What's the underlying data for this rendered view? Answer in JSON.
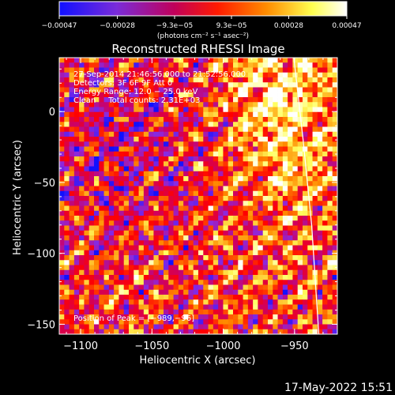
{
  "chart_data": {
    "type": "heatmap",
    "title": "Reconstructed RHESSI Image",
    "xlabel": "Heliocentric X (arcsec)",
    "ylabel": "Heliocentric Y (arcsec)",
    "xlim": [
      -1115,
      -920
    ],
    "ylim": [
      -157,
      38
    ],
    "x_ticks": [
      -1100,
      -1050,
      -1000,
      -950
    ],
    "x_tick_labels": [
      "−1100",
      "−1050",
      "−1000",
      "−950"
    ],
    "y_ticks": [
      0,
      -50,
      -100,
      -150
    ],
    "y_tick_labels": [
      "0",
      "−50",
      "−100",
      "−150"
    ],
    "colorbar": {
      "range": [
        -0.00047,
        0.00047
      ],
      "tick_values": [
        -0.00047,
        -0.00028,
        -9.3e-05,
        9.3e-05,
        0.00028,
        0.00047
      ],
      "tick_labels": [
        "−0.00047",
        "−0.00028",
        "−9.3e−05",
        "9.3e−05",
        "0.00028",
        "0.00047"
      ],
      "units": "(photons cm⁻² s⁻¹ asec⁻²)",
      "colors": [
        "#1010ff",
        "#8a2be2",
        "#cc0066",
        "#ff0000",
        "#ff8c00",
        "#ffff60",
        "#ffffff"
      ]
    },
    "annotations": {
      "time": "27‑Sep‑2014 21:46:56.000 to 21:52:56.000",
      "detectors": "Detectors: 3F 6F 9F Att 0",
      "energy": "Energy Range: 12.0 − 25.0 keV",
      "method": "Clean     Total counts: 2.31E+03",
      "peak": "Position of Peak = [−989,−96]"
    },
    "limb_curve_points": [
      [
        -950.5,
        38
      ],
      [
        -944,
        -20
      ],
      [
        -938,
        -80
      ],
      [
        -933,
        -157
      ]
    ],
    "grid": false,
    "plot_date": "17-May-2022 15:51"
  }
}
